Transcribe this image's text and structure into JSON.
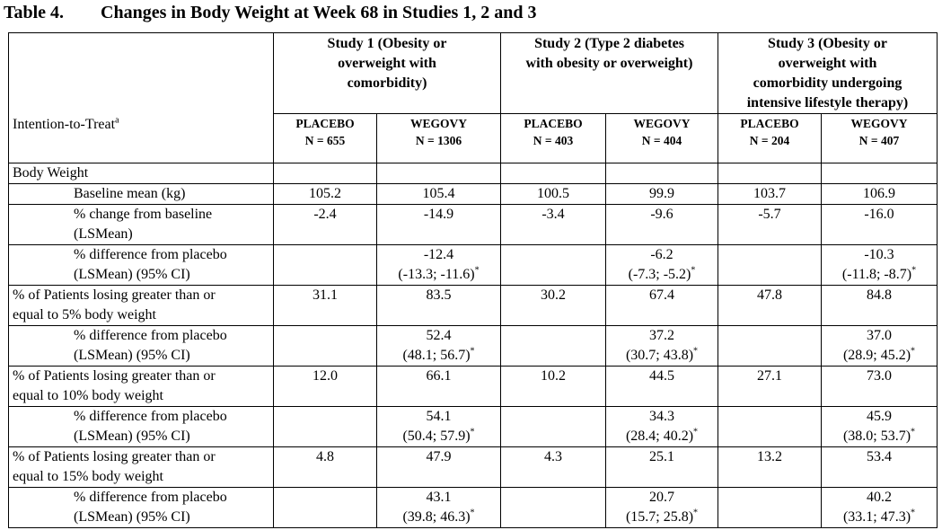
{
  "title": {
    "number": "Table 4.",
    "text": "Changes in Body Weight at Week 68 in Studies 1, 2 and 3"
  },
  "studies": [
    {
      "lines": [
        "Study 1 (Obesity or",
        "overweight with",
        "comorbidity)"
      ]
    },
    {
      "lines": [
        "Study 2 (Type 2 diabetes",
        "with obesity or overweight)"
      ]
    },
    {
      "lines": [
        "Study 3 (Obesity or",
        "overweight with",
        "comorbidity undergoing",
        "intensive lifestyle therapy)"
      ]
    }
  ],
  "itt": {
    "label": "Intention-to-Treat",
    "sup": "a"
  },
  "groups": [
    {
      "name": "PLACEBO",
      "n": "N = 655"
    },
    {
      "name": "WEGOVY",
      "n": "N = 1306"
    },
    {
      "name": "PLACEBO",
      "n": "N = 403"
    },
    {
      "name": "WEGOVY",
      "n": "N = 404"
    },
    {
      "name": "PLACEBO",
      "n": "N = 204"
    },
    {
      "name": "WEGOVY",
      "n": "N = 407"
    }
  ],
  "section": "Body Weight",
  "rows": [
    {
      "indent": true,
      "label": [
        "Baseline mean (kg)"
      ],
      "cells": [
        [
          "105.2"
        ],
        [
          "105.4"
        ],
        [
          "100.5"
        ],
        [
          "99.9"
        ],
        [
          "103.7"
        ],
        [
          "106.9"
        ]
      ]
    },
    {
      "indent": true,
      "label": [
        "% change from baseline",
        "(LSMean)"
      ],
      "cells": [
        [
          "-2.4"
        ],
        [
          "-14.9"
        ],
        [
          "-3.4"
        ],
        [
          "-9.6"
        ],
        [
          "-5.7"
        ],
        [
          "-16.0"
        ]
      ]
    },
    {
      "indent": true,
      "label": [
        "% difference from placebo",
        "(LSMean) (95% CI)"
      ],
      "cells": [
        [],
        [
          "-12.4",
          "(-13.3; -11.6)"
        ],
        [],
        [
          "-6.2",
          "(-7.3; -5.2)"
        ],
        [],
        [
          "-10.3",
          "(-11.8; -8.7)"
        ]
      ],
      "star": true
    },
    {
      "indent": false,
      "label": [
        "% of Patients losing greater than or",
        "equal to 5% body weight"
      ],
      "cells": [
        [
          "31.1"
        ],
        [
          "83.5"
        ],
        [
          "30.2"
        ],
        [
          "67.4"
        ],
        [
          "47.8"
        ],
        [
          "84.8"
        ]
      ]
    },
    {
      "indent": true,
      "label": [
        "% difference from placebo",
        "(LSMean) (95% CI)"
      ],
      "cells": [
        [],
        [
          "52.4",
          "(48.1; 56.7)"
        ],
        [],
        [
          "37.2",
          "(30.7; 43.8)"
        ],
        [],
        [
          "37.0",
          "(28.9; 45.2)"
        ]
      ],
      "star": true
    },
    {
      "indent": false,
      "label": [
        "% of Patients losing greater than or",
        "equal to 10% body weight"
      ],
      "cells": [
        [
          "12.0"
        ],
        [
          "66.1"
        ],
        [
          "10.2"
        ],
        [
          "44.5"
        ],
        [
          "27.1"
        ],
        [
          "73.0"
        ]
      ]
    },
    {
      "indent": true,
      "label": [
        "% difference from placebo",
        "(LSMean) (95% CI)"
      ],
      "cells": [
        [],
        [
          "54.1",
          "(50.4; 57.9)"
        ],
        [],
        [
          "34.3",
          "(28.4; 40.2)"
        ],
        [],
        [
          "45.9",
          "(38.0; 53.7)"
        ]
      ],
      "star": true
    },
    {
      "indent": false,
      "label": [
        "% of Patients losing greater than or",
        "equal to 15% body weight"
      ],
      "cells": [
        [
          "4.8"
        ],
        [
          "47.9"
        ],
        [
          "4.3"
        ],
        [
          "25.1"
        ],
        [
          "13.2"
        ],
        [
          "53.4"
        ]
      ]
    },
    {
      "indent": true,
      "label": [
        "% difference from placebo",
        "(LSMean) (95% CI)"
      ],
      "cells": [
        [],
        [
          "43.1",
          "(39.8; 46.3)"
        ],
        [],
        [
          "20.7",
          "(15.7; 25.8)"
        ],
        [],
        [
          "40.2",
          "(33.1; 47.3)"
        ]
      ],
      "star": true
    }
  ],
  "significance_mark": "*"
}
